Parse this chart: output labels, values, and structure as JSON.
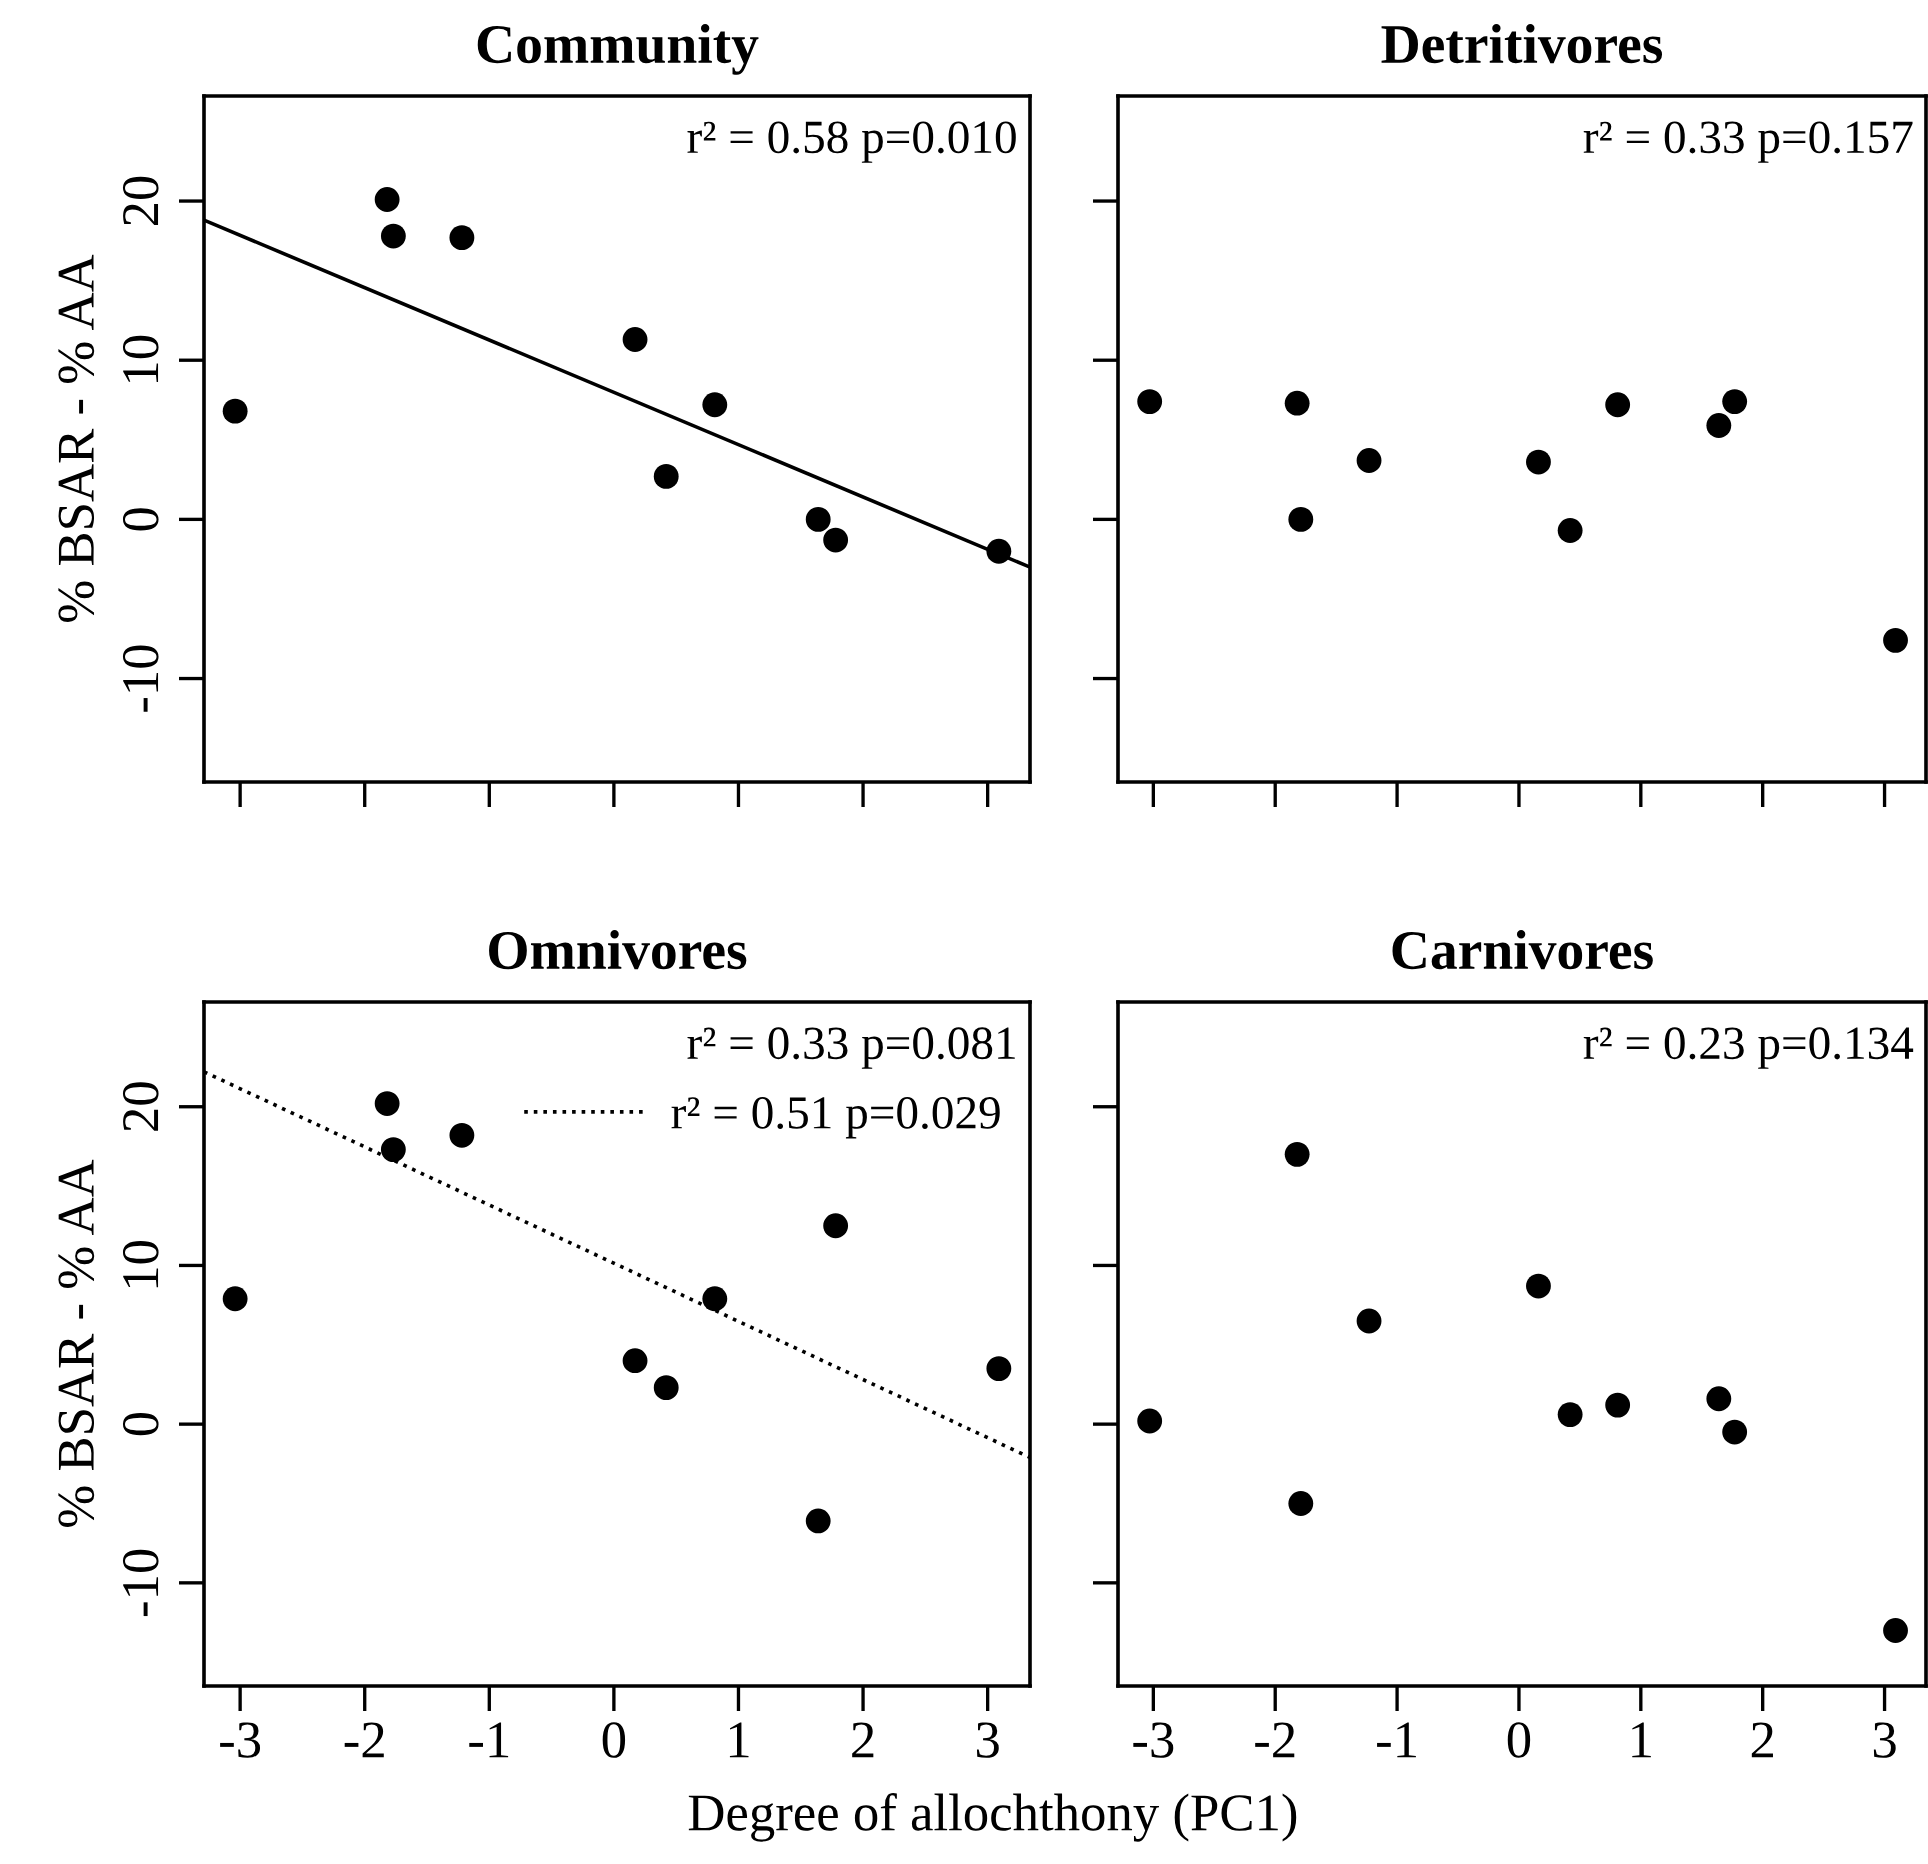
{
  "chart_data": [
    {
      "type": "scatter",
      "title": "Community",
      "ylabel": "% BSAR - % AA",
      "xlim": [
        -3.29,
        3.34
      ],
      "ylim": [
        -16.5,
        26.6
      ],
      "xticks": [
        -3,
        -2,
        -1,
        0,
        1,
        2,
        3
      ],
      "yticks": [
        -10,
        0,
        10,
        20
      ],
      "tick_labels": "y",
      "marker": "circle",
      "grid": false,
      "legend": false,
      "annotations": [
        "r² = 0.58 p=0.010"
      ],
      "series": [
        {
          "color": "#000000",
          "x": [
            -3.04,
            -1.82,
            -1.77,
            -1.22,
            0.17,
            0.42,
            0.81,
            1.64,
            1.78,
            3.09
          ],
          "values": [
            6.8,
            20.1,
            17.8,
            17.7,
            11.3,
            2.7,
            7.2,
            0.0,
            -1.3,
            -2.0
          ]
        },
        {
          "type": "line",
          "line_style": "solid",
          "marker": "none",
          "color": "#000000",
          "x": [
            -3.29,
            3.34
          ],
          "values": [
            18.8,
            -3.0
          ]
        }
      ]
    },
    {
      "type": "scatter",
      "title": "Detritivores",
      "xlim": [
        -3.29,
        3.34
      ],
      "ylim": [
        -16.5,
        26.6
      ],
      "xticks": [
        -3,
        -2,
        -1,
        0,
        1,
        2,
        3
      ],
      "yticks": [
        -10,
        0,
        10,
        20
      ],
      "tick_labels": false,
      "marker": "circle",
      "grid": false,
      "legend": false,
      "annotations": [
        "r² = 0.33 p=0.157"
      ],
      "series": [
        {
          "color": "#000000",
          "x": [
            -3.03,
            -1.82,
            -1.79,
            -1.23,
            0.16,
            0.42,
            0.81,
            1.64,
            1.77,
            3.09
          ],
          "values": [
            7.4,
            7.3,
            0.0,
            3.7,
            3.6,
            -0.7,
            7.2,
            5.9,
            7.4,
            -7.6
          ]
        }
      ]
    },
    {
      "type": "scatter",
      "title": "Omnivores",
      "ylabel": "% BSAR - % AA",
      "xlabel": "Degree of allochthony (PC1)",
      "xlim": [
        -3.29,
        3.34
      ],
      "ylim": [
        -16.5,
        26.6
      ],
      "xticks": [
        -3,
        -2,
        -1,
        0,
        1,
        2,
        3
      ],
      "yticks": [
        -10,
        0,
        10,
        20
      ],
      "marker": "circle",
      "grid": false,
      "legend": "top right",
      "annotations": [
        "r² = 0.33 p=0.081"
      ],
      "series": [
        {
          "color": "#000000",
          "x": [
            -3.04,
            -1.82,
            -1.77,
            -1.22,
            0.17,
            0.42,
            0.81,
            1.64,
            1.78,
            3.09
          ],
          "values": [
            7.9,
            20.2,
            17.3,
            18.2,
            4.0,
            2.3,
            7.9,
            -6.1,
            12.5,
            3.5
          ]
        },
        {
          "type": "line",
          "line_style": "dotted",
          "marker": "none",
          "name": "r² = 0.51 p=0.029",
          "color": "#000000",
          "x": [
            -3.29,
            3.34
          ],
          "values": [
            22.2,
            -2.1
          ]
        }
      ]
    },
    {
      "type": "scatter",
      "title": "Carnivores",
      "xlim": [
        -3.29,
        3.34
      ],
      "ylim": [
        -16.5,
        26.6
      ],
      "xticks": [
        -3,
        -2,
        -1,
        0,
        1,
        2,
        3
      ],
      "yticks": [
        -10,
        0,
        10,
        20
      ],
      "tick_labels": "x",
      "marker": "circle",
      "grid": false,
      "legend": false,
      "annotations": [
        "r² = 0.23 p=0.134"
      ],
      "series": [
        {
          "color": "#000000",
          "x": [
            -3.03,
            -1.82,
            -1.79,
            -1.23,
            0.16,
            0.42,
            0.81,
            1.64,
            1.77,
            3.09
          ],
          "values": [
            0.2,
            17.0,
            -5.0,
            6.5,
            8.7,
            0.6,
            1.2,
            1.6,
            -0.5,
            -13.0
          ]
        }
      ]
    }
  ]
}
